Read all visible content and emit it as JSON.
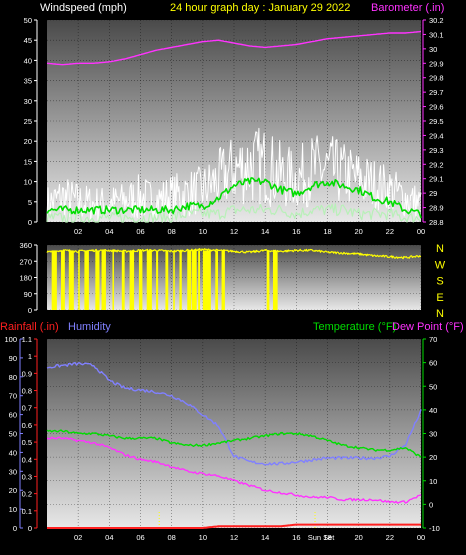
{
  "header": {
    "left_label": "Windspeed (mph)",
    "title": "24 hour graph day : January 29 2022",
    "right_label": "Barometer (.in)"
  },
  "colors": {
    "white": "#ffffff",
    "yellow": "#ffff00",
    "magenta": "#ff33ff",
    "green": "#00dd00",
    "lightgreen": "#b8f0b8",
    "red": "#ff2020",
    "blue": "#8080ff"
  },
  "chart_data": [
    {
      "type": "line",
      "x_ticks": [
        "02",
        "04",
        "06",
        "08",
        "10",
        "12",
        "14",
        "16",
        "18",
        "20",
        "22",
        "00"
      ],
      "left_axis": {
        "label": "Windspeed (mph)",
        "ylim": [
          0,
          50
        ],
        "ticks": [
          0,
          5,
          10,
          15,
          20,
          25,
          30,
          35,
          40,
          45,
          50
        ]
      },
      "right_axis": {
        "label": "Barometer (.in)",
        "ylim": [
          28.8,
          30.2
        ],
        "ticks": [
          "28.8",
          "28.9",
          "29",
          "29.1",
          "29.2",
          "29.3",
          "29.4",
          "29.5",
          "29.6",
          "29.7",
          "29.8",
          "29.9",
          "30",
          "30.1",
          "30.2"
        ]
      },
      "series": [
        {
          "color": "white",
          "axis": "left",
          "hours": [
            0,
            1,
            2,
            3,
            4,
            5,
            6,
            7,
            8,
            9,
            10,
            11,
            12,
            13,
            14,
            15,
            16,
            17,
            18,
            19,
            20,
            21,
            22,
            23,
            24
          ],
          "lo": [
            0,
            0,
            0,
            0,
            0,
            1,
            0,
            1,
            1,
            1,
            2,
            3,
            4,
            4,
            4,
            3,
            3,
            4,
            4,
            4,
            3,
            3,
            2,
            1,
            0
          ],
          "hi": [
            9,
            12,
            10,
            9,
            9,
            10,
            12,
            10,
            12,
            13,
            14,
            18,
            22,
            24,
            24,
            20,
            18,
            22,
            22,
            20,
            18,
            16,
            14,
            11,
            9
          ]
        },
        {
          "color": "green",
          "axis": "left",
          "hours": [
            0,
            1,
            2,
            3,
            4,
            5,
            6,
            7,
            8,
            9,
            10,
            11,
            12,
            13,
            14,
            15,
            16,
            17,
            18,
            19,
            20,
            21,
            22,
            23,
            24
          ],
          "values": [
            3,
            3,
            3,
            3,
            3,
            3,
            3,
            3,
            3,
            4,
            4,
            6,
            9,
            10,
            10,
            8,
            7,
            9,
            10,
            9,
            8,
            6,
            5,
            3,
            2
          ]
        },
        {
          "color": "lightgreen",
          "axis": "left",
          "hours": [
            0,
            1,
            2,
            3,
            4,
            5,
            6,
            7,
            8,
            9,
            10,
            11,
            12,
            13,
            14,
            15,
            16,
            17,
            18,
            19,
            20,
            21,
            22,
            23,
            24
          ],
          "values": [
            1,
            1,
            1,
            1,
            1,
            1,
            1,
            1,
            1,
            2,
            2,
            2,
            3,
            3,
            3,
            3,
            2,
            3,
            3,
            3,
            2,
            2,
            2,
            1,
            1
          ]
        },
        {
          "color": "magenta",
          "axis": "right",
          "hours": [
            0,
            1,
            2,
            3,
            4,
            5,
            6,
            7,
            8,
            9,
            10,
            11,
            12,
            13,
            14,
            15,
            16,
            17,
            18,
            19,
            20,
            21,
            22,
            23,
            24
          ],
          "values": [
            29.9,
            29.89,
            29.9,
            29.9,
            29.91,
            29.93,
            29.96,
            29.99,
            30.01,
            30.03,
            30.05,
            30.06,
            30.04,
            30.02,
            30.01,
            30.02,
            30.03,
            30.05,
            30.07,
            30.08,
            30.09,
            30.1,
            30.11,
            30.11,
            30.12
          ]
        }
      ]
    },
    {
      "type": "line",
      "x_ticks": [],
      "left_axis": {
        "ylim": [
          0,
          360
        ],
        "ticks": [
          0,
          90,
          180,
          270,
          360
        ]
      },
      "right_labels": [
        "N",
        "W",
        "S",
        "E",
        "N"
      ],
      "series": [
        {
          "color": "yellow",
          "hours": [
            0,
            1,
            2,
            3,
            4,
            5,
            6,
            7,
            8,
            9,
            10,
            11,
            12,
            13,
            14,
            15,
            16,
            17,
            18,
            19,
            20,
            21,
            22,
            23,
            24
          ],
          "values": [
            320,
            330,
            325,
            330,
            330,
            325,
            330,
            330,
            325,
            330,
            335,
            330,
            325,
            320,
            330,
            325,
            330,
            330,
            320,
            315,
            310,
            300,
            295,
            290,
            300
          ]
        }
      ]
    },
    {
      "type": "line",
      "left_labels": [
        "Rainfall (.in)",
        "Humidity"
      ],
      "right_labels": [
        "Temperature (°F)",
        "Dew Point (°F)"
      ],
      "x_ticks": [
        "02",
        "04",
        "06",
        "08",
        "10",
        "12",
        "14",
        "16",
        "18",
        "20",
        "22",
        "00"
      ],
      "event_labels": [
        "Sun Set"
      ],
      "humidity_axis": {
        "ylim": [
          0,
          100
        ],
        "ticks": [
          0,
          10,
          20,
          30,
          40,
          50,
          60,
          70,
          80,
          90,
          100
        ]
      },
      "rain_axis": {
        "ylim": [
          0,
          1.1
        ],
        "ticks": [
          "0",
          "0.1",
          "0.2",
          "0.3",
          "0.4",
          "0.5",
          "0.6",
          "0.7",
          "0.8",
          "0.9",
          "1",
          "1.1"
        ]
      },
      "temp_axis": {
        "ylim": [
          -10,
          70
        ],
        "ticks": [
          "-10",
          "0",
          "10",
          "20",
          "30",
          "40",
          "50",
          "60",
          "70"
        ]
      },
      "series": [
        {
          "name": "Humidity",
          "color": "blue",
          "axis": "humidity",
          "hours": [
            0,
            1,
            2,
            3,
            4,
            5,
            6,
            7,
            8,
            9,
            10,
            11,
            12,
            13,
            14,
            15,
            16,
            17,
            18,
            19,
            20,
            21,
            22,
            23,
            24
          ],
          "values": [
            85,
            86,
            87,
            86,
            78,
            74,
            73,
            72,
            70,
            66,
            60,
            54,
            38,
            35,
            34,
            34,
            35,
            36,
            37,
            37,
            37,
            37,
            38,
            44,
            62
          ]
        },
        {
          "name": "Temperature (°F)",
          "color": "green",
          "axis": "temp",
          "hours": [
            0,
            1,
            2,
            3,
            4,
            5,
            6,
            7,
            8,
            9,
            10,
            11,
            12,
            13,
            14,
            15,
            16,
            17,
            18,
            19,
            20,
            21,
            22,
            23,
            24
          ],
          "values": [
            31,
            31,
            30,
            30,
            29,
            28,
            28,
            28,
            26,
            25,
            25,
            26,
            27,
            28,
            29,
            30,
            30,
            29,
            27,
            25,
            24,
            23,
            23,
            24,
            20
          ]
        },
        {
          "name": "Dew Point (°F)",
          "color": "magenta",
          "axis": "temp",
          "hours": [
            0,
            1,
            2,
            3,
            4,
            5,
            6,
            7,
            8,
            9,
            10,
            11,
            12,
            13,
            14,
            15,
            16,
            17,
            18,
            19,
            20,
            21,
            22,
            23,
            24
          ],
          "values": [
            28,
            28,
            27,
            26,
            24,
            21,
            19,
            18,
            16,
            14,
            13,
            12,
            10,
            8,
            6,
            5,
            4,
            3,
            3,
            2,
            2,
            2,
            1,
            1,
            4
          ]
        },
        {
          "name": "Rainfall (.in)",
          "color": "red",
          "axis": "rain",
          "hours": [
            0,
            1,
            2,
            3,
            4,
            5,
            6,
            7,
            8,
            9,
            10,
            11,
            12,
            13,
            14,
            15,
            16,
            17,
            18,
            19,
            20,
            21,
            22,
            23,
            24
          ],
          "values": [
            0,
            0,
            0,
            0,
            0,
            0,
            0,
            0,
            0,
            0,
            0,
            0.01,
            0.01,
            0.01,
            0.01,
            0.01,
            0.02,
            0.02,
            0.02,
            0.02,
            0.02,
            0.02,
            0.02,
            0.02,
            0.02
          ]
        }
      ]
    }
  ]
}
